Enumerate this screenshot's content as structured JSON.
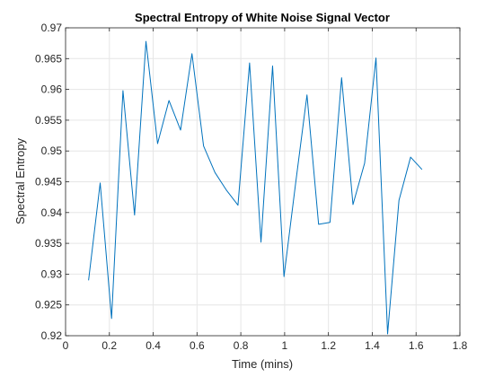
{
  "chart_data": {
    "type": "line",
    "title": "Spectral Entropy of White Noise Signal Vector",
    "xlabel": "Time (mins)",
    "ylabel": "Spectral Entropy",
    "xlim": [
      0,
      1.8
    ],
    "ylim": [
      0.92,
      0.97
    ],
    "xticks": [
      0,
      0.2,
      0.4,
      0.6,
      0.8,
      1,
      1.2,
      1.4,
      1.6,
      1.8
    ],
    "xtick_labels": [
      "0",
      "0.2",
      "0.4",
      "0.6",
      "0.8",
      "1",
      "1.2",
      "1.4",
      "1.6",
      "1.8"
    ],
    "yticks": [
      0.92,
      0.925,
      0.93,
      0.935,
      0.94,
      0.945,
      0.95,
      0.955,
      0.96,
      0.965,
      0.97
    ],
    "ytick_labels": [
      "0.92",
      "0.925",
      "0.93",
      "0.935",
      "0.94",
      "0.945",
      "0.95",
      "0.955",
      "0.96",
      "0.965",
      "0.97"
    ],
    "grid": true,
    "series": [
      {
        "color": "#0072BD",
        "x": [
          0.105,
          0.158,
          0.21,
          0.262,
          0.315,
          0.367,
          0.42,
          0.472,
          0.525,
          0.577,
          0.63,
          0.682,
          0.735,
          0.787,
          0.84,
          0.892,
          0.945,
          0.997,
          1.05,
          1.102,
          1.155,
          1.207,
          1.26,
          1.312,
          1.365,
          1.417,
          1.47,
          1.522,
          1.575,
          1.627
        ],
        "y": [
          0.929,
          0.9448,
          0.9228,
          0.9598,
          0.9396,
          0.9678,
          0.9512,
          0.9582,
          0.9534,
          0.9658,
          0.9508,
          0.9465,
          0.9436,
          0.9412,
          0.9643,
          0.9352,
          0.9638,
          0.9296,
          0.9447,
          0.9591,
          0.9381,
          0.9384,
          0.9619,
          0.9413,
          0.948,
          0.9651,
          0.9203,
          0.942,
          0.949,
          0.947
        ]
      }
    ]
  }
}
